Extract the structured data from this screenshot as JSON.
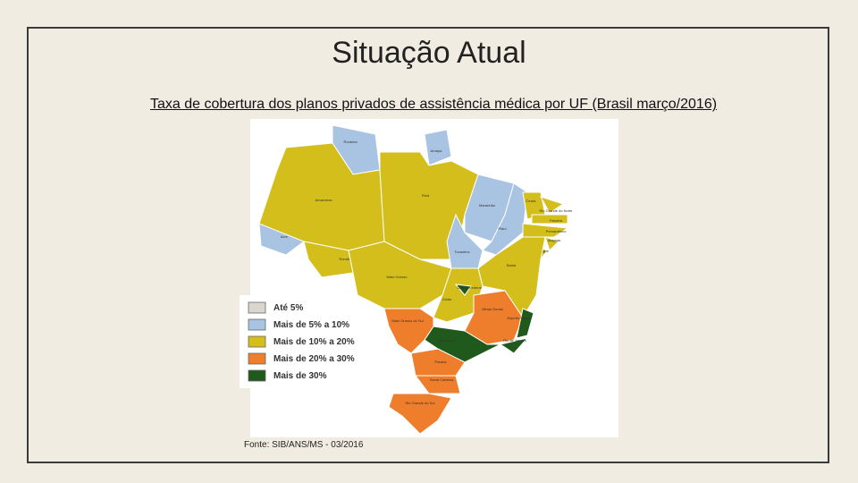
{
  "header": {
    "title": "Situação Atual",
    "subtitle": "Taxa de cobertura dos planos privados de assistência médica por UF (Brasil março/2016)"
  },
  "legend": {
    "items": [
      {
        "label": "Até 5%",
        "color": "#d9d5cf"
      },
      {
        "label": "Mais de 5% a 10%",
        "color": "#a9c4e2"
      },
      {
        "label": "Mais de 10% a 20%",
        "color": "#d4be1c"
      },
      {
        "label": "Mais de 20% a 30%",
        "color": "#ee7d2c"
      },
      {
        "label": "Mais de 30%",
        "color": "#1f5a1c"
      }
    ]
  },
  "states": [
    {
      "name": "Roraima",
      "color": "#a9c4e2"
    },
    {
      "name": "Amapá",
      "color": "#a9c4e2"
    },
    {
      "name": "Amazonas",
      "color": "#d4be1c"
    },
    {
      "name": "Acre",
      "color": "#a9c4e2"
    },
    {
      "name": "Pará",
      "color": "#d4be1c"
    },
    {
      "name": "Maranhão",
      "color": "#a9c4e2"
    },
    {
      "name": "Piauí",
      "color": "#a9c4e2"
    },
    {
      "name": "Tocantins",
      "color": "#a9c4e2"
    },
    {
      "name": "Ceará",
      "color": "#d4be1c"
    },
    {
      "name": "Rio Grande do Norte",
      "color": "#d4be1c"
    },
    {
      "name": "Paraíba",
      "color": "#d4be1c"
    },
    {
      "name": "Pernambuco",
      "color": "#d4be1c"
    },
    {
      "name": "Alagoas",
      "color": "#d4be1c"
    },
    {
      "name": "Sergipe",
      "color": "#d4be1c"
    },
    {
      "name": "Bahia",
      "color": "#d4be1c"
    },
    {
      "name": "Rondônia",
      "color": "#d4be1c"
    },
    {
      "name": "Mato Grosso",
      "color": "#d4be1c"
    },
    {
      "name": "Goiás",
      "color": "#d4be1c"
    },
    {
      "name": "Distrito Federal",
      "color": "#1f5a1c"
    },
    {
      "name": "Minas Gerais",
      "color": "#ee7d2c"
    },
    {
      "name": "Espírito Santo",
      "color": "#1f5a1c"
    },
    {
      "name": "Rio de Janeiro",
      "color": "#1f5a1c"
    },
    {
      "name": "São Paulo",
      "color": "#1f5a1c"
    },
    {
      "name": "Mato Grosso do Sul",
      "color": "#ee7d2c"
    },
    {
      "name": "Paraná",
      "color": "#ee7d2c"
    },
    {
      "name": "Santa Catarina",
      "color": "#ee7d2c"
    },
    {
      "name": "Rio Grande do Sul",
      "color": "#ee7d2c"
    }
  ],
  "source": "Fonte: SIB/ANS/MS - 03/2016"
}
